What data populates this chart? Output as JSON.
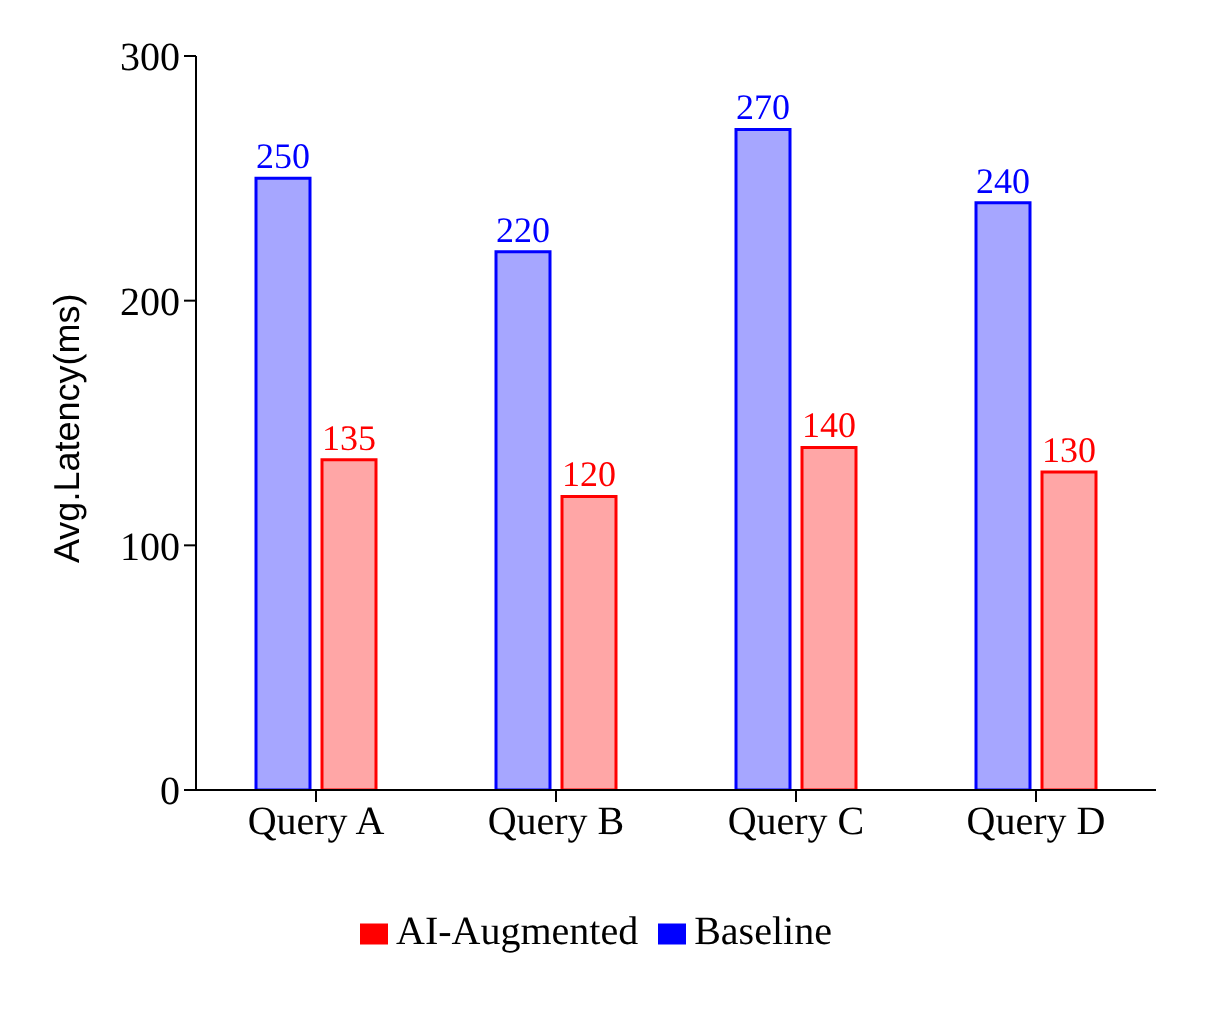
{
  "chart_data": {
    "type": "bar",
    "ylabel": "Avg.Latency(ms)",
    "categories": [
      "Query A",
      "Query B",
      "Query C",
      "Query D"
    ],
    "series": [
      {
        "name": "Baseline",
        "color": "#0000ff",
        "values": [
          250,
          220,
          270,
          240
        ]
      },
      {
        "name": "AI-Augmented",
        "color": "#ff0000",
        "values": [
          135,
          120,
          140,
          130
        ]
      }
    ],
    "ylim": [
      0,
      300
    ],
    "yticks": [
      0,
      100,
      200,
      300
    ],
    "data_labels": true,
    "legend": "bottom",
    "grid": false
  }
}
